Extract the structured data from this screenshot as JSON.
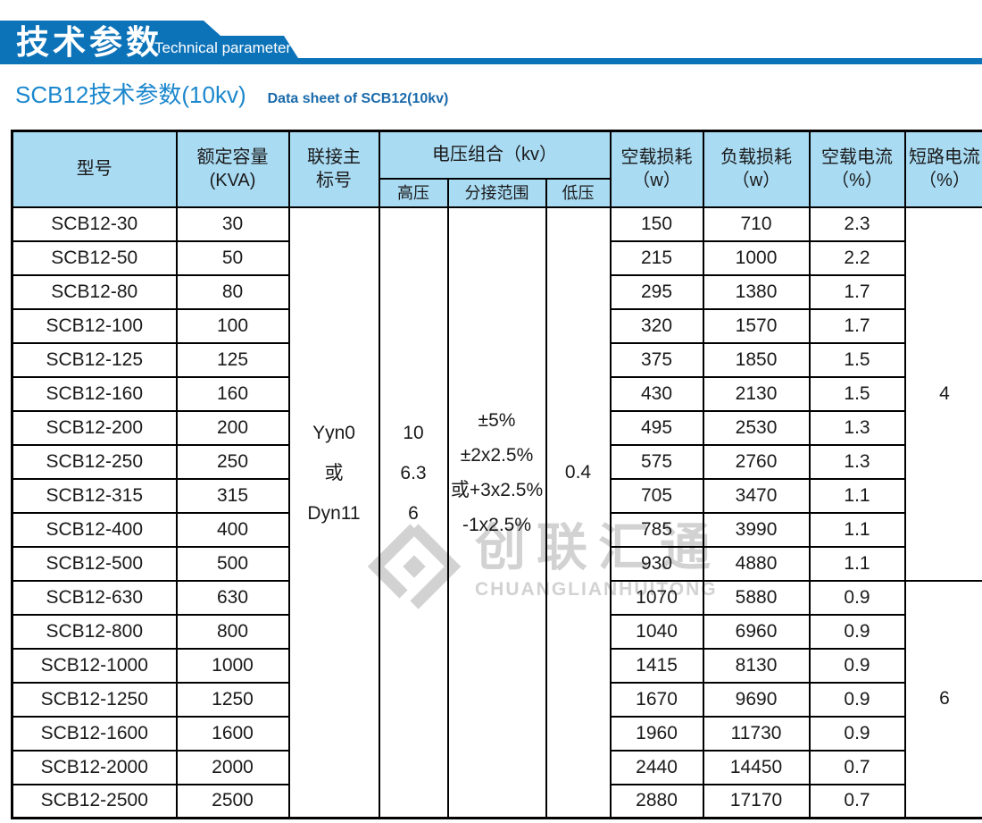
{
  "banner": {
    "title_zh": "技术参数",
    "title_en": "Technical parameter"
  },
  "subtitle": {
    "zh": "SCB12技术参数(10kv)",
    "en": "Data sheet of SCB12(10kv)"
  },
  "watermark": {
    "zh": "创联汇通",
    "en": "CHUANGLIANHUITONG"
  },
  "colors": {
    "banner_blue": "#0d73b9",
    "title_blue": "#1b87cd",
    "subtitle_en_blue": "#1a6aab",
    "header_bg": "#a9dbf3",
    "border_black": "#000000",
    "watermark_gray": "#d2d2d2"
  },
  "table": {
    "headers": {
      "model": "型号",
      "capacity": "额定容量\n(KVA)",
      "vector_group": "联接主\n标号",
      "voltage_combo": "电压组合（kv）",
      "hv": "高压",
      "tap_range": "分接范围",
      "lv": "低压",
      "no_load_loss": "空载损耗\n（w）",
      "load_loss": "负载损耗\n（w）",
      "no_load_current": "空载电流\n（%）",
      "short_circuit_current": "短路电流\n（%）"
    },
    "merged": {
      "vector_group": "Yyn0\n或\nDyn11",
      "hv": "10\n6.3\n6",
      "tap_range": "±5%\n±2x2.5%\n或+3x2.5%\n-1x2.5%",
      "lv": "0.4",
      "short_circuit_groups": [
        {
          "value": "4",
          "rows": 11
        },
        {
          "value": "6",
          "rows": 7
        }
      ]
    },
    "rows": [
      {
        "model": "SCB12-30",
        "kva": "30",
        "no_load_loss": "150",
        "load_loss": "710",
        "no_load_current": "2.3"
      },
      {
        "model": "SCB12-50",
        "kva": "50",
        "no_load_loss": "215",
        "load_loss": "1000",
        "no_load_current": "2.2"
      },
      {
        "model": "SCB12-80",
        "kva": "80",
        "no_load_loss": "295",
        "load_loss": "1380",
        "no_load_current": "1.7"
      },
      {
        "model": "SCB12-100",
        "kva": "100",
        "no_load_loss": "320",
        "load_loss": "1570",
        "no_load_current": "1.7"
      },
      {
        "model": "SCB12-125",
        "kva": "125",
        "no_load_loss": "375",
        "load_loss": "1850",
        "no_load_current": "1.5"
      },
      {
        "model": "SCB12-160",
        "kva": "160",
        "no_load_loss": "430",
        "load_loss": "2130",
        "no_load_current": "1.5"
      },
      {
        "model": "SCB12-200",
        "kva": "200",
        "no_load_loss": "495",
        "load_loss": "2530",
        "no_load_current": "1.3"
      },
      {
        "model": "SCB12-250",
        "kva": "250",
        "no_load_loss": "575",
        "load_loss": "2760",
        "no_load_current": "1.3"
      },
      {
        "model": "SCB12-315",
        "kva": "315",
        "no_load_loss": "705",
        "load_loss": "3470",
        "no_load_current": "1.1"
      },
      {
        "model": "SCB12-400",
        "kva": "400",
        "no_load_loss": "785",
        "load_loss": "3990",
        "no_load_current": "1.1"
      },
      {
        "model": "SCB12-500",
        "kva": "500",
        "no_load_loss": "930",
        "load_loss": "4880",
        "no_load_current": "1.1"
      },
      {
        "model": "SCB12-630",
        "kva": "630",
        "no_load_loss": "1070",
        "load_loss": "5880",
        "no_load_current": "0.9"
      },
      {
        "model": "SCB12-800",
        "kva": "800",
        "no_load_loss": "1040",
        "load_loss": "6960",
        "no_load_current": "0.9"
      },
      {
        "model": "SCB12-1000",
        "kva": "1000",
        "no_load_loss": "1415",
        "load_loss": "8130",
        "no_load_current": "0.9"
      },
      {
        "model": "SCB12-1250",
        "kva": "1250",
        "no_load_loss": "1670",
        "load_loss": "9690",
        "no_load_current": "0.9"
      },
      {
        "model": "SCB12-1600",
        "kva": "1600",
        "no_load_loss": "1960",
        "load_loss": "11730",
        "no_load_current": "0.9"
      },
      {
        "model": "SCB12-2000",
        "kva": "2000",
        "no_load_loss": "2440",
        "load_loss": "14450",
        "no_load_current": "0.7"
      },
      {
        "model": "SCB12-2500",
        "kva": "2500",
        "no_load_loss": "2880",
        "load_loss": "17170",
        "no_load_current": "0.7"
      }
    ]
  }
}
